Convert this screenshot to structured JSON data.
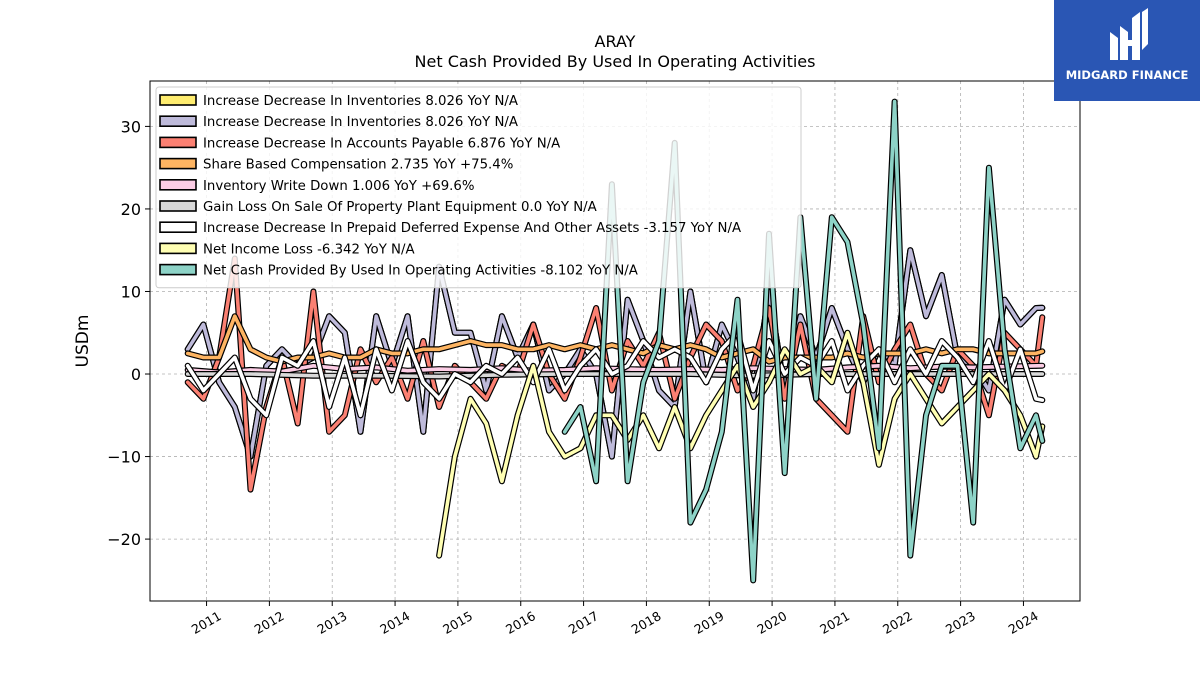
{
  "brand": {
    "name": "MIDGARD FINANCE",
    "color": "#2a56b4"
  },
  "chart_data": {
    "type": "line",
    "title": "ARAY",
    "subtitle": "Net Cash Provided By Used In Operating Activities",
    "ylabel": "USDm",
    "xlabel": "",
    "xlim": [
      2010.1,
      2024.9
    ],
    "ylim": [
      -27.5,
      35.5
    ],
    "yticks": [
      -20,
      -10,
      0,
      10,
      20,
      30
    ],
    "xticks": [
      2011,
      2012,
      2013,
      2014,
      2015,
      2016,
      2017,
      2018,
      2019,
      2020,
      2021,
      2022,
      2023,
      2024
    ],
    "grid": true,
    "legend_position": "top-left",
    "series": [
      {
        "name": "Increase Decrease In Inventories",
        "legend": "Increase Decrease In Inventories  8.026 YoY N/A",
        "color": "#ffed6f",
        "x": [
          2010.7,
          2010.95,
          2011.2,
          2011.45,
          2011.7,
          2011.95,
          2012.2,
          2012.45,
          2012.7,
          2012.95,
          2013.2,
          2013.45,
          2013.7,
          2013.95,
          2014.2,
          2014.45,
          2014.7,
          2014.95,
          2015.2,
          2015.45,
          2015.7,
          2015.95,
          2016.2,
          2016.45,
          2016.7,
          2016.95,
          2017.2,
          2017.45,
          2017.7,
          2017.95,
          2018.2,
          2018.45,
          2018.7,
          2018.95,
          2019.2,
          2019.45,
          2019.7,
          2019.95,
          2020.2,
          2020.45,
          2020.7,
          2020.95,
          2021.2,
          2021.45,
          2021.7,
          2021.95,
          2022.2,
          2022.45,
          2022.7,
          2022.95,
          2023.2,
          2023.45,
          2023.7,
          2023.95,
          2024.2,
          2024.3
        ],
        "values": [
          3,
          6,
          -1,
          -4,
          -10,
          1,
          3,
          1,
          2,
          7,
          5,
          -7,
          7,
          1,
          7,
          -7,
          13,
          5,
          5,
          -2,
          7,
          2,
          6,
          -2,
          0,
          3,
          0,
          -10,
          9,
          4,
          -2,
          -4,
          10,
          -1,
          6,
          2,
          -3,
          10,
          -2,
          7,
          2,
          8,
          3,
          -1,
          3,
          1,
          15,
          7,
          12,
          2,
          1,
          -2,
          9,
          6,
          8,
          8.026
        ]
      },
      {
        "name": "Increase Decrease In Inventories",
        "legend": "Increase Decrease In Inventories  8.026 YoY N/A",
        "color": "#bebada",
        "x": [
          2010.7,
          2010.95,
          2011.2,
          2011.45,
          2011.7,
          2011.95,
          2012.2,
          2012.45,
          2012.7,
          2012.95,
          2013.2,
          2013.45,
          2013.7,
          2013.95,
          2014.2,
          2014.45,
          2014.7,
          2014.95,
          2015.2,
          2015.45,
          2015.7,
          2015.95,
          2016.2,
          2016.45,
          2016.7,
          2016.95,
          2017.2,
          2017.45,
          2017.7,
          2017.95,
          2018.2,
          2018.45,
          2018.7,
          2018.95,
          2019.2,
          2019.45,
          2019.7,
          2019.95,
          2020.2,
          2020.45,
          2020.7,
          2020.95,
          2021.2,
          2021.45,
          2021.7,
          2021.95,
          2022.2,
          2022.45,
          2022.7,
          2022.95,
          2023.2,
          2023.45,
          2023.7,
          2023.95,
          2024.2,
          2024.3
        ],
        "values": [
          3,
          6,
          -1,
          -4,
          -10,
          1,
          3,
          1,
          2,
          7,
          5,
          -7,
          7,
          1,
          7,
          -7,
          13,
          5,
          5,
          -2,
          7,
          2,
          6,
          -2,
          0,
          3,
          0,
          -10,
          9,
          4,
          -2,
          -4,
          10,
          -1,
          6,
          2,
          -3,
          10,
          -2,
          7,
          2,
          8,
          3,
          -1,
          3,
          1,
          15,
          7,
          12,
          2,
          1,
          -2,
          9,
          6,
          8,
          8.026
        ]
      },
      {
        "name": "Increase Decrease In Accounts Payable",
        "legend": "Increase Decrease In Accounts Payable  6.876 YoY N/A",
        "color": "#fb8072",
        "x": [
          2010.7,
          2010.95,
          2011.2,
          2011.45,
          2011.7,
          2011.95,
          2012.2,
          2012.45,
          2012.7,
          2012.95,
          2013.2,
          2013.45,
          2013.7,
          2013.95,
          2014.2,
          2014.45,
          2014.7,
          2014.95,
          2015.2,
          2015.45,
          2015.7,
          2015.95,
          2016.2,
          2016.45,
          2016.7,
          2016.95,
          2017.2,
          2017.45,
          2017.7,
          2017.95,
          2018.2,
          2018.45,
          2018.7,
          2018.95,
          2019.2,
          2019.45,
          2019.7,
          2019.95,
          2020.2,
          2020.45,
          2020.7,
          2020.95,
          2021.2,
          2021.45,
          2021.7,
          2021.95,
          2022.2,
          2022.45,
          2022.7,
          2022.95,
          2023.2,
          2023.45,
          2023.7,
          2023.95,
          2024.2,
          2024.3
        ],
        "values": [
          -1,
          -3,
          2,
          14,
          -14,
          -4,
          2,
          -6,
          10,
          -7,
          -5,
          3,
          -1,
          2,
          -3,
          4,
          -4,
          1,
          -1,
          -3,
          1,
          0,
          6,
          0,
          -3,
          2,
          8,
          -2,
          4,
          1,
          5,
          -3,
          2,
          6,
          4,
          -2,
          1,
          8,
          -3,
          6,
          -3,
          -5,
          -7,
          7,
          -1,
          3,
          6,
          0,
          -2,
          3,
          1,
          -5,
          5,
          3,
          1,
          6.876
        ]
      },
      {
        "name": "Share Based Compensation",
        "legend": "Share Based Compensation  2.735 YoY +75.4%",
        "color": "#fdb462",
        "x": [
          2010.7,
          2010.95,
          2011.2,
          2011.45,
          2011.7,
          2011.95,
          2012.2,
          2012.45,
          2012.7,
          2012.95,
          2013.2,
          2013.45,
          2013.7,
          2013.95,
          2014.2,
          2014.45,
          2014.7,
          2014.95,
          2015.2,
          2015.45,
          2015.7,
          2015.95,
          2016.2,
          2016.45,
          2016.7,
          2016.95,
          2017.2,
          2017.45,
          2017.7,
          2017.95,
          2018.2,
          2018.45,
          2018.7,
          2018.95,
          2019.2,
          2019.45,
          2019.7,
          2019.95,
          2020.2,
          2020.45,
          2020.7,
          2020.95,
          2021.2,
          2021.45,
          2021.7,
          2021.95,
          2022.2,
          2022.45,
          2022.7,
          2022.95,
          2023.2,
          2023.45,
          2023.7,
          2023.95,
          2024.2,
          2024.3
        ],
        "values": [
          2.5,
          2,
          2,
          7,
          3,
          2,
          1.5,
          2,
          2,
          2.5,
          2,
          2,
          3,
          2.5,
          2.5,
          3,
          3,
          3.5,
          4,
          3.5,
          3.5,
          3,
          3,
          3.5,
          3,
          3.5,
          3,
          3.5,
          3,
          2.5,
          3.5,
          3,
          3.5,
          3,
          2,
          2.5,
          3,
          1.5,
          2,
          2,
          2,
          2,
          2.5,
          2,
          2.5,
          2.5,
          2.5,
          3,
          2.5,
          3,
          3,
          2.5,
          2.5,
          2.5,
          2.5,
          2.735
        ]
      },
      {
        "name": "Inventory Write Down",
        "legend": "Inventory Write Down  1.006 YoY +69.6%",
        "color": "#fccde5",
        "x": [
          2010.7,
          2011.2,
          2011.7,
          2012.2,
          2012.7,
          2013.2,
          2013.7,
          2014.2,
          2014.7,
          2015.2,
          2015.7,
          2016.2,
          2016.7,
          2017.2,
          2017.7,
          2018.2,
          2018.7,
          2019.2,
          2019.7,
          2020.2,
          2020.7,
          2021.2,
          2021.7,
          2022.2,
          2022.7,
          2023.2,
          2023.7,
          2024.3
        ],
        "values": [
          0.5,
          0.2,
          0.5,
          0.3,
          1,
          0.6,
          0.8,
          0.4,
          0.6,
          0.5,
          0.7,
          0.4,
          0.5,
          0.7,
          0.6,
          0.5,
          0.6,
          0.5,
          0.7,
          0.6,
          0.5,
          0.8,
          1,
          0.7,
          0.9,
          0.8,
          0.9,
          1.006
        ]
      },
      {
        "name": "Gain Loss On Sale Of Property Plant Equipment",
        "legend": "Gain Loss On Sale Of Property Plant Equipment  0.0 YoY N/A",
        "color": "#d9d9d9",
        "x": [
          2010.7,
          2011.7,
          2012.7,
          2013.7,
          2014.7,
          2015.7,
          2016.7,
          2017.7,
          2018.7,
          2019.7,
          2020.7,
          2021.7,
          2022.7,
          2023.7,
          2024.3
        ],
        "values": [
          0,
          0,
          -0.2,
          -0.2,
          -0.3,
          -0.1,
          0,
          0,
          0,
          -0.2,
          0,
          0,
          0,
          0,
          0.0
        ]
      },
      {
        "name": "Increase Decrease In Prepaid Deferred Expense And Other Assets",
        "legend": "Increase Decrease In Prepaid Deferred Expense And Other Assets  -3.157 YoY N/A",
        "color": "#ffffff",
        "x": [
          2010.7,
          2010.95,
          2011.2,
          2011.45,
          2011.7,
          2011.95,
          2012.2,
          2012.45,
          2012.7,
          2012.95,
          2013.2,
          2013.45,
          2013.7,
          2013.95,
          2014.2,
          2014.45,
          2014.7,
          2014.95,
          2015.2,
          2015.45,
          2015.7,
          2015.95,
          2016.2,
          2016.45,
          2016.7,
          2016.95,
          2017.2,
          2017.45,
          2017.7,
          2017.95,
          2018.2,
          2018.45,
          2018.7,
          2018.95,
          2019.2,
          2019.45,
          2019.7,
          2019.95,
          2020.2,
          2020.45,
          2020.7,
          2020.95,
          2021.2,
          2021.45,
          2021.7,
          2021.95,
          2022.2,
          2022.45,
          2022.7,
          2022.95,
          2023.2,
          2023.45,
          2023.7,
          2023.95,
          2024.2,
          2024.3
        ],
        "values": [
          1,
          -2,
          0,
          2,
          -3,
          -5,
          2,
          1,
          4,
          -4,
          2,
          -5,
          3,
          -2,
          4,
          -1,
          -3,
          0,
          -1,
          1,
          0,
          2,
          -1,
          3,
          -2,
          1,
          3,
          0,
          1,
          4,
          2,
          3,
          2,
          -1,
          3,
          5,
          -2,
          4,
          0,
          2,
          1,
          4,
          -2,
          1,
          3,
          -1,
          3,
          0,
          4,
          2,
          -1,
          4,
          -2,
          3,
          -3,
          -3.157
        ]
      },
      {
        "name": "Net Income Loss",
        "legend": "Net Income Loss  -6.342 YoY N/A",
        "color": "#ffffb3",
        "x": [
          2014.7,
          2014.95,
          2015.2,
          2015.45,
          2015.7,
          2015.95,
          2016.2,
          2016.45,
          2016.7,
          2016.95,
          2017.2,
          2017.45,
          2017.7,
          2017.95,
          2018.2,
          2018.45,
          2018.7,
          2018.95,
          2019.2,
          2019.45,
          2019.7,
          2019.95,
          2020.2,
          2020.45,
          2020.7,
          2020.95,
          2021.2,
          2021.45,
          2021.7,
          2021.95,
          2022.2,
          2022.45,
          2022.7,
          2022.95,
          2023.2,
          2023.45,
          2023.7,
          2023.95,
          2024.2,
          2024.3
        ],
        "values": [
          -22,
          -10,
          -3,
          -6,
          -13,
          -5,
          1,
          -7,
          -10,
          -9,
          -5,
          -5,
          -8,
          -5,
          -9,
          -4,
          -9,
          -5,
          -2,
          1,
          -4,
          -1,
          3,
          0,
          1,
          -1,
          5,
          -1,
          -11,
          -3,
          0,
          -3,
          -6,
          -4,
          -2,
          0,
          -2,
          -5,
          -10,
          -6.342
        ]
      },
      {
        "name": "Net Cash Provided By Used In Operating Activities",
        "legend": "Net Cash Provided By Used In Operating Activities  -8.102 YoY N/A",
        "color": "#8dd3c7",
        "x": [
          2016.7,
          2016.95,
          2017.2,
          2017.45,
          2017.7,
          2017.95,
          2018.2,
          2018.45,
          2018.7,
          2018.95,
          2019.2,
          2019.45,
          2019.7,
          2019.95,
          2020.2,
          2020.45,
          2020.7,
          2020.95,
          2021.2,
          2021.45,
          2021.7,
          2021.95,
          2022.2,
          2022.45,
          2022.7,
          2022.95,
          2023.2,
          2023.45,
          2023.7,
          2023.95,
          2024.2,
          2024.3
        ],
        "values": [
          -7,
          -4,
          -13,
          23,
          -13,
          -1,
          4,
          28,
          -18,
          -14,
          -7,
          9,
          -25,
          17,
          -12,
          19,
          -3,
          19,
          16,
          6,
          -9,
          33,
          -22,
          -5,
          1,
          1,
          -18,
          25,
          3,
          -9,
          -5,
          -8.102
        ]
      }
    ]
  }
}
